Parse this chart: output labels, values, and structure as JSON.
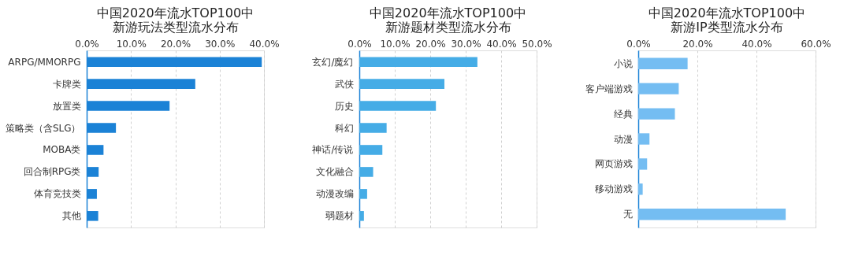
{
  "chart_data": [
    {
      "type": "bar",
      "orientation": "horizontal",
      "title": "中国2020年流水TOP100中新游玩法类型流水分布",
      "categories": [
        "ARPG/MMORPG",
        "卡牌类",
        "放置类",
        "策略类（含SLG）",
        "MOBA类",
        "回合制RPG类",
        "体育竞技类",
        "其他"
      ],
      "values": [
        39.5,
        24.5,
        18.7,
        6.6,
        3.8,
        2.7,
        2.3,
        2.6
      ],
      "color": "#1b82d6",
      "xlim": [
        0,
        40
      ],
      "xticks": [
        {
          "value": 0,
          "label": "0.0%"
        },
        {
          "value": 10,
          "label": "10.0%"
        },
        {
          "value": 20,
          "label": "20.0%"
        },
        {
          "value": 30,
          "label": "30.0%"
        },
        {
          "value": 40,
          "label": "40.0%"
        }
      ],
      "grid": "x"
    },
    {
      "type": "bar",
      "orientation": "horizontal",
      "title": "中国2020年流水TOP100中新游题材类型流水分布",
      "categories": [
        "玄幻/魔幻",
        "武侠",
        "历史",
        "科幻",
        "神话/传说",
        "文化融合",
        "动漫改编",
        "弱题材"
      ],
      "values": [
        33.3,
        24.0,
        21.6,
        7.7,
        6.5,
        3.9,
        2.2,
        1.3
      ],
      "color": "#45ace6",
      "xlim": [
        0,
        50
      ],
      "xticks": [
        {
          "value": 0,
          "label": "0.0%"
        },
        {
          "value": 10,
          "label": "10.0%"
        },
        {
          "value": 20,
          "label": "20.0%"
        },
        {
          "value": 30,
          "label": "30.0%"
        },
        {
          "value": 40,
          "label": "40.0%"
        },
        {
          "value": 50,
          "label": "50.0%"
        }
      ],
      "grid": "x"
    },
    {
      "type": "bar",
      "orientation": "horizontal",
      "title": "中国2020年流水TOP100中新游IP类型流水分布",
      "categories": [
        "小说",
        "客户端游戏",
        "经典",
        "动漫",
        "网页游戏",
        "移动游戏",
        "无"
      ],
      "values": [
        16.7,
        13.7,
        12.4,
        3.8,
        3.0,
        1.5,
        49.9
      ],
      "color": "#74bdf2",
      "xlim": [
        0,
        60
      ],
      "xticks": [
        {
          "value": 0,
          "label": "0.0%"
        },
        {
          "value": 20,
          "label": "20.0%"
        },
        {
          "value": 40,
          "label": "40.0%"
        },
        {
          "value": 60,
          "label": "60.0%"
        }
      ],
      "grid": "x"
    }
  ]
}
